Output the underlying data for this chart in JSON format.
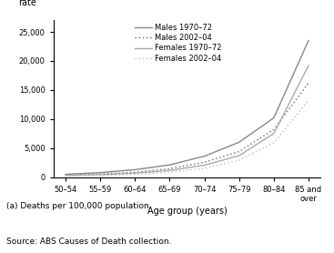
{
  "age_groups": [
    "50–54",
    "55–59",
    "60–64",
    "65–69",
    "70–74",
    "75–79",
    "80–84",
    "85 and\nover"
  ],
  "males_1970_72": [
    480,
    780,
    1280,
    2100,
    3600,
    6000,
    10200,
    23500
  ],
  "males_2002_04": [
    320,
    520,
    860,
    1450,
    2550,
    4400,
    8200,
    16200
  ],
  "females_1970_72": [
    280,
    430,
    680,
    1150,
    2050,
    3700,
    7500,
    19200
  ],
  "females_2002_04": [
    190,
    290,
    480,
    850,
    1520,
    2900,
    5900,
    13200
  ],
  "color_males_1970": "#888888",
  "color_males_2002": "#666666",
  "color_females_1970": "#aaaaaa",
  "color_females_2002": "#bbbbbb",
  "xlabel": "Age group (years)",
  "rate_label": "rate",
  "ylim": [
    0,
    27000
  ],
  "yticks": [
    0,
    5000,
    10000,
    15000,
    20000,
    25000
  ],
  "footnote": "(a) Deaths per 100,000 population.",
  "source": "Source: ABS Causes of Death collection.",
  "legend_labels": [
    "Males 1970–72",
    "Males 2002–04",
    "Females 1970–72",
    "Females 2002–04"
  ]
}
